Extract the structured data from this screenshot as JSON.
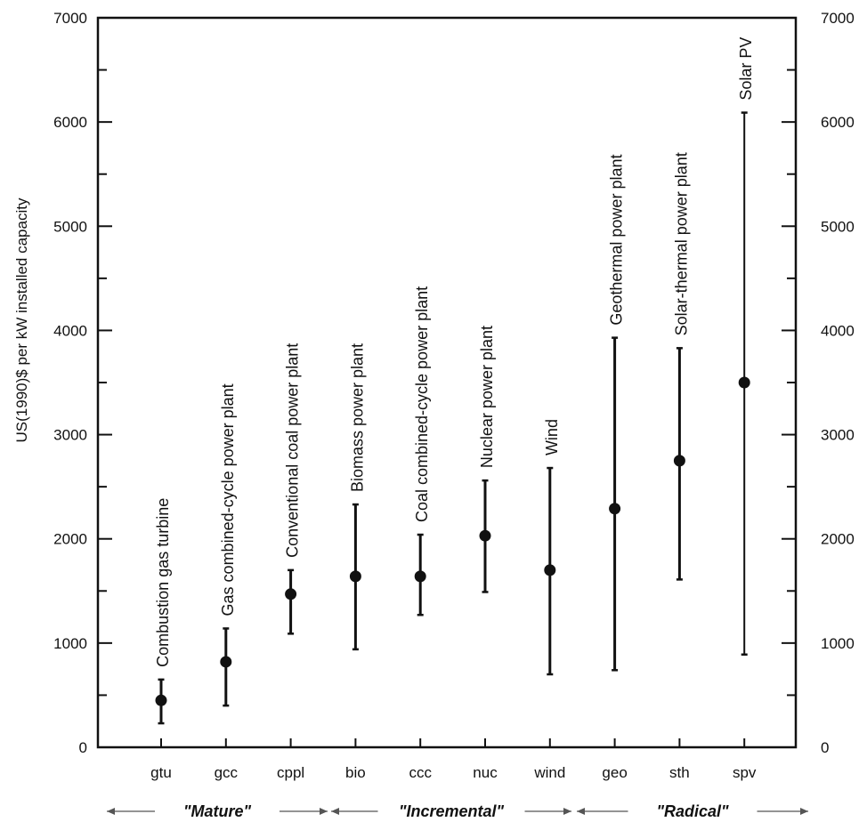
{
  "chart_data": {
    "type": "scatter",
    "ylabel": "US(1990)$ per kW installed capacity",
    "xlabel": "",
    "ylim": [
      0,
      7000
    ],
    "y_ticks": [
      0,
      1000,
      2000,
      3000,
      4000,
      5000,
      6000,
      7000
    ],
    "y_tick_labels": [
      "0",
      "1000",
      "2000",
      "3000",
      "4000",
      "5000",
      "6000",
      "7000"
    ],
    "right_axis_mirrors_left": true,
    "grid": false,
    "categories": [
      "gtu",
      "gcc",
      "cppl",
      "bio",
      "ccc",
      "nuc",
      "wind",
      "geo",
      "sth",
      "spv"
    ],
    "points": [
      {
        "category": "gtu",
        "label": "Combustion gas turbine",
        "value": 450,
        "low": 230,
        "high": 650
      },
      {
        "category": "gcc",
        "label": "Gas combined-cycle power plant",
        "value": 820,
        "low": 400,
        "high": 1140
      },
      {
        "category": "cppl",
        "label": "Conventional coal power plant",
        "value": 1470,
        "low": 1090,
        "high": 1700
      },
      {
        "category": "bio",
        "label": "Biomass power plant",
        "value": 1640,
        "low": 940,
        "high": 2330
      },
      {
        "category": "ccc",
        "label": "Coal combined-cycle power plant",
        "value": 1640,
        "low": 1270,
        "high": 2040
      },
      {
        "category": "nuc",
        "label": "Nuclear power plant",
        "value": 2030,
        "low": 1490,
        "high": 2560
      },
      {
        "category": "wind",
        "label": "Wind",
        "value": 1700,
        "low": 700,
        "high": 2680
      },
      {
        "category": "geo",
        "label": "Geothermal power plant",
        "value": 2290,
        "low": 740,
        "high": 3930
      },
      {
        "category": "sth",
        "label": "Solar-thermal power plant",
        "value": 2750,
        "low": 1610,
        "high": 3830
      },
      {
        "category": "spv",
        "label": "Solar PV",
        "value": 3500,
        "low": 890,
        "high": 6090
      }
    ],
    "groups": [
      {
        "label": "\"Mature\"",
        "from": "gtu",
        "to": "cppl"
      },
      {
        "label": "\"Incremental\"",
        "from": "bio",
        "to": "wind"
      },
      {
        "label": "\"Radical\"",
        "from": "geo",
        "to": "spv"
      }
    ]
  }
}
